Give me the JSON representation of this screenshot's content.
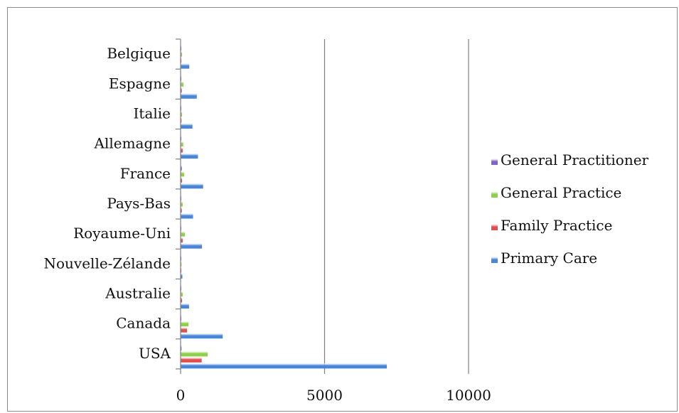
{
  "chart_data": {
    "type": "bar",
    "orientation": "horizontal",
    "title": "",
    "xlabel": "",
    "ylabel": "",
    "xlim": [
      0,
      10000
    ],
    "x_ticks": [
      0,
      5000,
      10000
    ],
    "x_tick_labels": [
      "0",
      "5000",
      "10000"
    ],
    "grid": "vertical major gridlines",
    "legend_position": "right",
    "categories": [
      "USA",
      "Canada",
      "Australie",
      "Nouvelle-Zélande",
      "Royaume-Uni",
      "Pays-Bas",
      "France",
      "Allemagne",
      "Italie",
      "Espagne",
      "Belgique"
    ],
    "series": [
      {
        "name": "Primary Care",
        "color": "#4a86d8",
        "values": [
          7150,
          1450,
          280,
          50,
          730,
          420,
          770,
          590,
          400,
          550,
          290
        ]
      },
      {
        "name": "Family Practice",
        "color": "#e05050",
        "values": [
          720,
          210,
          40,
          5,
          60,
          30,
          40,
          60,
          20,
          30,
          15
        ]
      },
      {
        "name": "General Practice",
        "color": "#8fd04a",
        "values": [
          930,
          260,
          60,
          20,
          140,
          60,
          110,
          80,
          40,
          90,
          40
        ]
      },
      {
        "name": "General Practitioner",
        "color": "#8064c8",
        "values": [
          20,
          10,
          5,
          2,
          10,
          5,
          30,
          10,
          5,
          10,
          5
        ]
      }
    ],
    "legend_order": [
      "General Practitioner",
      "General Practice",
      "Family Practice",
      "Primary Care"
    ]
  }
}
